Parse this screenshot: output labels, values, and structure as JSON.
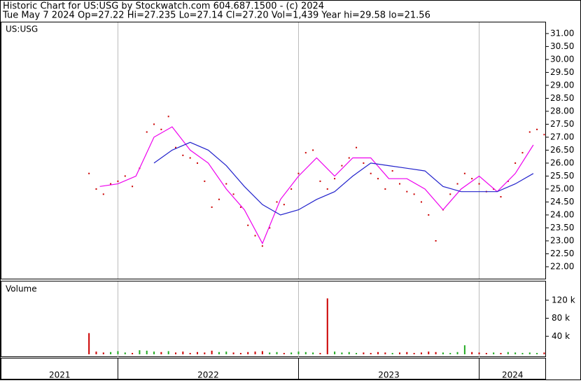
{
  "header": {
    "title": "Historic Chart for US:USG by Stockwatch.com 604.687.1500 - (c) 2024",
    "quote": "Tue May  7 2024   Op=27.22  Hi=27.235  Lo=27.14  Cl=27.20  Vol=1,439  Year hi=29.58  lo=21.56"
  },
  "chart_data": [
    {
      "type": "line",
      "symbol": "US:USG",
      "xlim": [
        2021.355,
        2024.37
      ],
      "xticks": [
        2022,
        2023,
        2024
      ],
      "ylim": [
        21.54,
        31.43
      ],
      "yticks": [
        {
          "value": 22,
          "label": "22.00"
        },
        {
          "value": 22.5,
          "label": "22.50"
        },
        {
          "value": 23,
          "label": "23.00"
        },
        {
          "value": 23.5,
          "label": "23.50"
        },
        {
          "value": 24,
          "label": "24.00"
        },
        {
          "value": 24.5,
          "label": "24.50"
        },
        {
          "value": 25,
          "label": "25.00"
        },
        {
          "value": 25.5,
          "label": "25.50"
        },
        {
          "value": 26,
          "label": "26.00"
        },
        {
          "value": 26.5,
          "label": "26.50"
        },
        {
          "value": 27,
          "label": "27.00"
        },
        {
          "value": 27.5,
          "label": "27.50"
        },
        {
          "value": 28,
          "label": "28.00"
        },
        {
          "value": 28.5,
          "label": "28.50"
        },
        {
          "value": 29,
          "label": "29.00"
        },
        {
          "value": 29.5,
          "label": "29.50"
        },
        {
          "value": 30,
          "label": "30.00"
        },
        {
          "value": 30.5,
          "label": "30.50"
        },
        {
          "value": 31,
          "label": "31.00"
        }
      ],
      "series": [
        {
          "color": "#cc0000",
          "style": "dots",
          "x": [
            2021.84,
            2021.88,
            2021.92,
            2021.96,
            2022,
            2022.04,
            2022.08,
            2022.12,
            2022.16,
            2022.2,
            2022.24,
            2022.28,
            2022.32,
            2022.36,
            2022.4,
            2022.44,
            2022.48,
            2022.52,
            2022.56,
            2022.6,
            2022.64,
            2022.68,
            2022.72,
            2022.76,
            2022.8,
            2022.84,
            2022.88,
            2022.92,
            2022.96,
            2023,
            2023.04,
            2023.08,
            2023.12,
            2023.16,
            2023.2,
            2023.24,
            2023.28,
            2023.32,
            2023.36,
            2023.4,
            2023.44,
            2023.48,
            2023.52,
            2023.56,
            2023.6,
            2023.64,
            2023.68,
            2023.72,
            2023.76,
            2023.8,
            2023.84,
            2023.88,
            2023.92,
            2023.96,
            2024,
            2024.04,
            2024.08,
            2024.12,
            2024.16,
            2024.2,
            2024.24,
            2024.28,
            2024.32,
            2024.36
          ],
          "values": [
            25.6,
            25.0,
            24.8,
            25.2,
            25.3,
            25.5,
            25.1,
            25.8,
            27.2,
            27.5,
            27.3,
            27.8,
            26.6,
            26.3,
            26.2,
            26.0,
            25.3,
            24.3,
            24.6,
            25.2,
            24.8,
            24.3,
            23.6,
            23.2,
            22.8,
            23.5,
            24.5,
            24.4,
            25.0,
            25.6,
            26.4,
            26.5,
            25.3,
            25.0,
            25.4,
            25.9,
            26.2,
            26.6,
            26.0,
            25.6,
            25.4,
            25.0,
            25.7,
            25.2,
            24.9,
            24.8,
            24.5,
            24.0,
            23.0,
            24.2,
            24.8,
            25.2,
            25.6,
            25.4,
            25.2,
            24.9,
            25.0,
            24.7,
            25.3,
            26.0,
            26.4,
            27.2,
            27.3,
            27.1
          ]
        },
        {
          "color": "#ee00ee",
          "style": "line",
          "x": [
            2021.9,
            2022,
            2022.1,
            2022.2,
            2022.3,
            2022.4,
            2022.5,
            2022.6,
            2022.7,
            2022.8,
            2022.9,
            2023,
            2023.1,
            2023.2,
            2023.3,
            2023.4,
            2023.5,
            2023.6,
            2023.7,
            2023.8,
            2023.9,
            2024,
            2024.1,
            2024.2,
            2024.3
          ],
          "values": [
            25.1,
            25.2,
            25.5,
            27.0,
            27.4,
            26.5,
            26.0,
            25.0,
            24.2,
            22.9,
            24.6,
            25.5,
            26.2,
            25.5,
            26.2,
            26.2,
            25.4,
            25.4,
            25.0,
            24.2,
            25.0,
            25.5,
            24.9,
            25.6,
            26.7
          ]
        },
        {
          "color": "#2222cc",
          "style": "line",
          "x": [
            2022.2,
            2022.3,
            2022.4,
            2022.5,
            2022.6,
            2022.7,
            2022.8,
            2022.9,
            2023,
            2023.1,
            2023.2,
            2023.3,
            2023.4,
            2023.5,
            2023.6,
            2023.7,
            2023.8,
            2023.9,
            2024,
            2024.1,
            2024.2,
            2024.3
          ],
          "values": [
            26.0,
            26.5,
            26.8,
            26.5,
            25.9,
            25.1,
            24.4,
            24.0,
            24.2,
            24.6,
            24.9,
            25.5,
            26.0,
            25.9,
            25.8,
            25.7,
            25.1,
            24.9,
            24.9,
            24.9,
            25.2,
            25.6
          ]
        }
      ]
    },
    {
      "type": "bar",
      "title": "Volume",
      "ylim": [
        0,
        160000
      ],
      "yticks": [
        {
          "value": 40000,
          "label": "40 k"
        },
        {
          "value": 80000,
          "label": "80 k"
        },
        {
          "value": 120000,
          "label": "120 k"
        }
      ],
      "up_color": "#22aa22",
      "down_color": "#cc0000",
      "values": [
        47000,
        6000,
        4000,
        5000,
        7000,
        4000,
        3000,
        9000,
        8000,
        6000,
        5000,
        7000,
        4000,
        6000,
        3000,
        5000,
        4000,
        8000,
        5000,
        6000,
        4000,
        3000,
        5000,
        6000,
        7000,
        4000,
        5000,
        3000,
        4000,
        6000,
        5000,
        4000,
        3000,
        124000,
        6000,
        4000,
        5000,
        3000,
        4000,
        3000,
        5000,
        4000,
        3000,
        4000,
        5000,
        3000,
        4000,
        6000,
        5000,
        4000,
        3000,
        5000,
        20000,
        5000,
        4000,
        3000,
        4000,
        3000,
        5000,
        4000,
        3000,
        4000,
        3000,
        4000
      ]
    },
    {
      "type": "timeline",
      "year_labels": [
        "2021",
        "2022",
        "2023",
        "2024"
      ]
    }
  ]
}
